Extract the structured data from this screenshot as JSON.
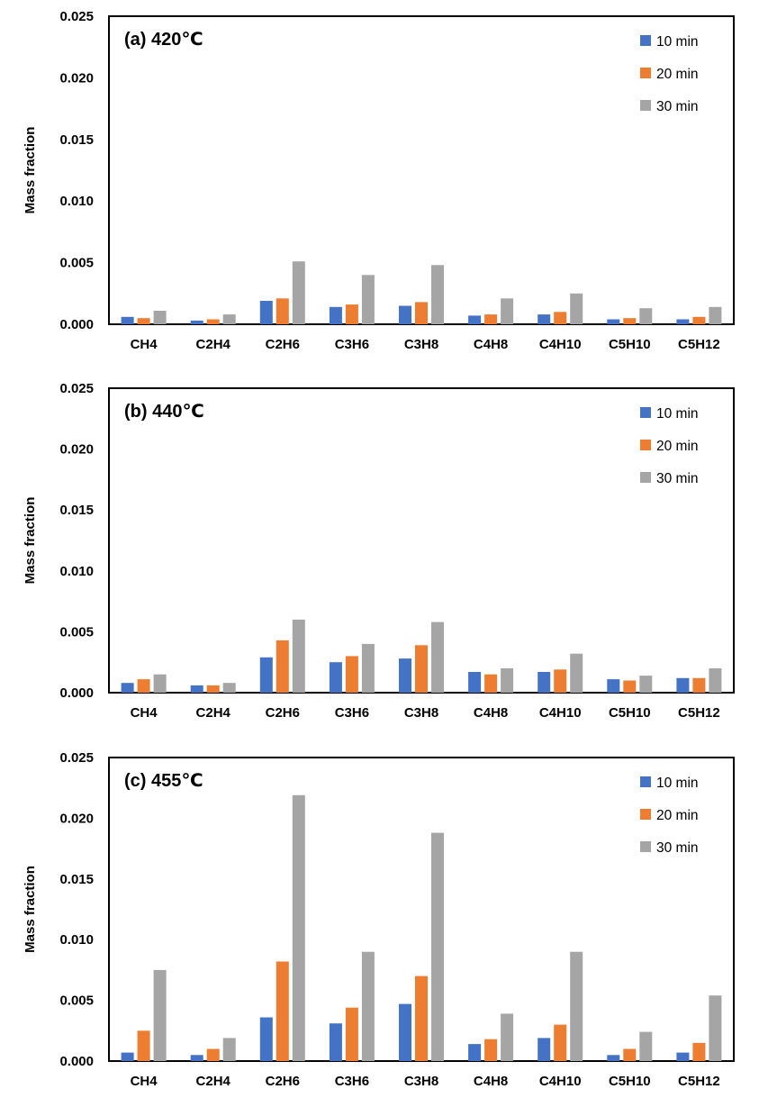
{
  "chart_data": [
    {
      "type": "bar",
      "title": "(a) 420℃",
      "ylabel": "Mass fraction",
      "xlabel": "",
      "ylim": [
        0,
        0.025
      ],
      "yticks": [
        "0.000",
        "0.005",
        "0.010",
        "0.015",
        "0.020",
        "0.025"
      ],
      "grid": false,
      "legend": "top-right",
      "categories": [
        "CH4",
        "C2H4",
        "C2H6",
        "C3H6",
        "C3H8",
        "C4H8",
        "C4H10",
        "C5H10",
        "C5H12"
      ],
      "series": [
        {
          "name": "10 min",
          "color": "#4472C4",
          "values": [
            0.0006,
            0.0003,
            0.0019,
            0.0014,
            0.0015,
            0.0007,
            0.0008,
            0.0004,
            0.0004
          ]
        },
        {
          "name": "20 min",
          "color": "#ED7D31",
          "values": [
            0.0005,
            0.0004,
            0.0021,
            0.0016,
            0.0018,
            0.0008,
            0.001,
            0.0005,
            0.0006
          ]
        },
        {
          "name": "30 min",
          "color": "#A5A5A5",
          "values": [
            0.0011,
            0.0008,
            0.0051,
            0.004,
            0.0048,
            0.0021,
            0.0025,
            0.0013,
            0.0014
          ]
        }
      ]
    },
    {
      "type": "bar",
      "title": "(b) 440℃",
      "ylabel": "Mass fraction",
      "xlabel": "",
      "ylim": [
        0,
        0.025
      ],
      "yticks": [
        "0.000",
        "0.005",
        "0.010",
        "0.015",
        "0.020",
        "0.025"
      ],
      "grid": false,
      "legend": "top-right",
      "categories": [
        "CH4",
        "C2H4",
        "C2H6",
        "C3H6",
        "C3H8",
        "C4H8",
        "C4H10",
        "C5H10",
        "C5H12"
      ],
      "series": [
        {
          "name": "10 min",
          "color": "#4472C4",
          "values": [
            0.0008,
            0.0006,
            0.0029,
            0.0025,
            0.0028,
            0.0017,
            0.0017,
            0.0011,
            0.0012
          ]
        },
        {
          "name": "20 min",
          "color": "#ED7D31",
          "values": [
            0.0011,
            0.0006,
            0.0043,
            0.003,
            0.0039,
            0.0015,
            0.0019,
            0.001,
            0.0012
          ]
        },
        {
          "name": "30 min",
          "color": "#A5A5A5",
          "values": [
            0.0015,
            0.0008,
            0.006,
            0.004,
            0.0058,
            0.002,
            0.0032,
            0.0014,
            0.002
          ]
        }
      ]
    },
    {
      "type": "bar",
      "title": "(c) 455℃",
      "ylabel": "Mass fraction",
      "xlabel": "",
      "ylim": [
        0,
        0.025
      ],
      "yticks": [
        "0.000",
        "0.005",
        "0.010",
        "0.015",
        "0.020",
        "0.025"
      ],
      "grid": false,
      "legend": "top-right",
      "categories": [
        "CH4",
        "C2H4",
        "C2H6",
        "C3H6",
        "C3H8",
        "C4H8",
        "C4H10",
        "C5H10",
        "C5H12"
      ],
      "series": [
        {
          "name": "10 min",
          "color": "#4472C4",
          "values": [
            0.0007,
            0.0005,
            0.0036,
            0.0031,
            0.0047,
            0.0014,
            0.0019,
            0.0005,
            0.0007
          ]
        },
        {
          "name": "20 min",
          "color": "#ED7D31",
          "values": [
            0.0025,
            0.001,
            0.0082,
            0.0044,
            0.007,
            0.0018,
            0.003,
            0.001,
            0.0015
          ]
        },
        {
          "name": "30 min",
          "color": "#A5A5A5",
          "values": [
            0.0075,
            0.0019,
            0.0219,
            0.009,
            0.0188,
            0.0039,
            0.009,
            0.0024,
            0.0054
          ]
        }
      ]
    }
  ]
}
